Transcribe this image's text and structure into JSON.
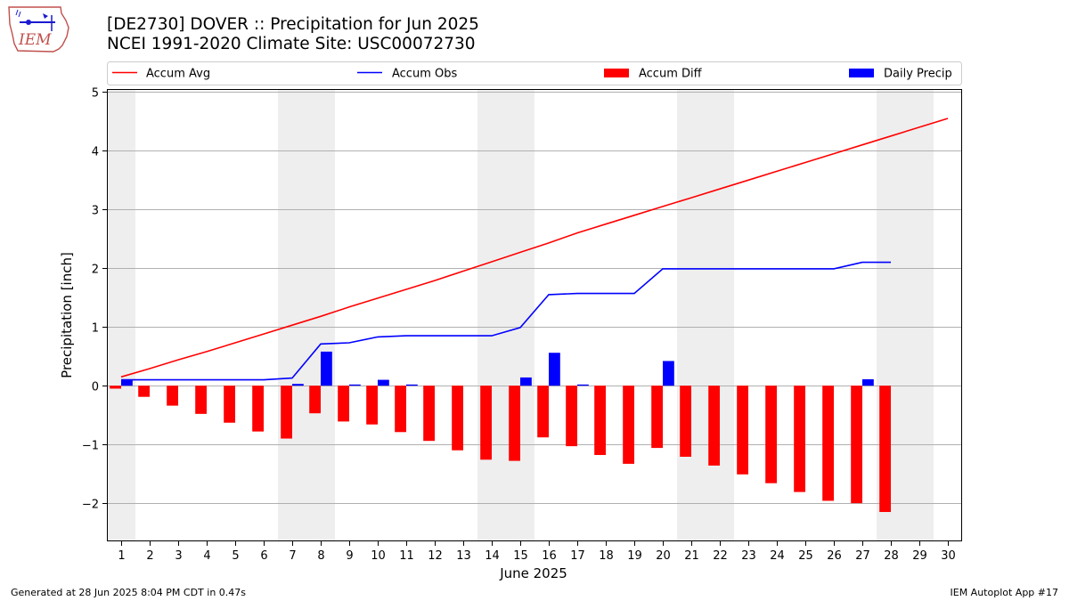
{
  "header": {
    "title_line1": "[DE2730] DOVER :: Precipitation for Jun 2025",
    "title_line2": "NCEI 1991-2020 Climate Site: USC00072730",
    "logo_text": "IEM"
  },
  "footer": {
    "generated": "Generated at 28 Jun 2025 8:04 PM CDT in 0.47s",
    "app": "IEM Autoplot App #17"
  },
  "colors": {
    "accum_avg": "#ff0000",
    "accum_obs": "#0000ff",
    "accum_diff": "#ff0000",
    "daily_precip": "#0000ff",
    "weekend_shade": "#eeeeee",
    "grid": "#b0b0b0"
  },
  "chart_data": {
    "type": "bar",
    "xlabel": "June 2025",
    "ylabel": "Precipitation [inch]",
    "xlim": [
      0.5,
      30.5
    ],
    "ylim": [
      -2.65,
      5.05
    ],
    "yticks": [
      -2,
      -1,
      0,
      1,
      2,
      3,
      4,
      5
    ],
    "x": [
      1,
      2,
      3,
      4,
      5,
      6,
      7,
      8,
      9,
      10,
      11,
      12,
      13,
      14,
      15,
      16,
      17,
      18,
      19,
      20,
      21,
      22,
      23,
      24,
      25,
      26,
      27,
      28,
      29,
      30
    ],
    "grid": "horizontal",
    "legend_position": "top",
    "weekend_shading": [
      [
        0.5,
        1.5
      ],
      [
        6.5,
        8.5
      ],
      [
        13.5,
        15.5
      ],
      [
        20.5,
        22.5
      ],
      [
        27.5,
        29.5
      ]
    ],
    "series": [
      {
        "name": "Accum Avg",
        "kind": "line",
        "values": [
          0.15,
          0.29,
          0.44,
          0.58,
          0.73,
          0.88,
          1.03,
          1.18,
          1.34,
          1.49,
          1.64,
          1.79,
          1.95,
          2.11,
          2.27,
          2.43,
          2.6,
          2.75,
          2.9,
          3.05,
          3.2,
          3.35,
          3.5,
          3.65,
          3.8,
          3.95,
          4.1,
          4.25,
          4.4,
          4.55
        ]
      },
      {
        "name": "Accum Obs",
        "kind": "line",
        "values": [
          0.1,
          0.1,
          0.1,
          0.1,
          0.1,
          0.1,
          0.13,
          0.71,
          0.73,
          0.83,
          0.85,
          0.85,
          0.85,
          0.85,
          0.99,
          1.55,
          1.57,
          1.57,
          1.57,
          1.99,
          1.99,
          1.99,
          1.99,
          1.99,
          1.99,
          1.99,
          2.1,
          2.1,
          null,
          null
        ]
      },
      {
        "name": "Accum Diff",
        "kind": "bar",
        "values": [
          -0.05,
          -0.19,
          -0.34,
          -0.48,
          -0.63,
          -0.78,
          -0.9,
          -0.47,
          -0.61,
          -0.66,
          -0.79,
          -0.94,
          -1.1,
          -1.26,
          -1.28,
          -0.88,
          -1.03,
          -1.18,
          -1.33,
          -1.06,
          -1.21,
          -1.36,
          -1.51,
          -1.66,
          -1.81,
          -1.96,
          -2.0,
          -2.15,
          null,
          null
        ]
      },
      {
        "name": "Daily Precip",
        "kind": "bar",
        "values": [
          0.1,
          0.0,
          0.0,
          0.0,
          0.0,
          0.0,
          0.03,
          0.58,
          0.02,
          0.1,
          0.02,
          0.0,
          0.0,
          0.0,
          0.14,
          0.56,
          0.02,
          0.0,
          0.0,
          0.42,
          0.0,
          0.0,
          0.0,
          0.0,
          0.0,
          0.0,
          0.11,
          0.0,
          null,
          null
        ]
      }
    ]
  }
}
